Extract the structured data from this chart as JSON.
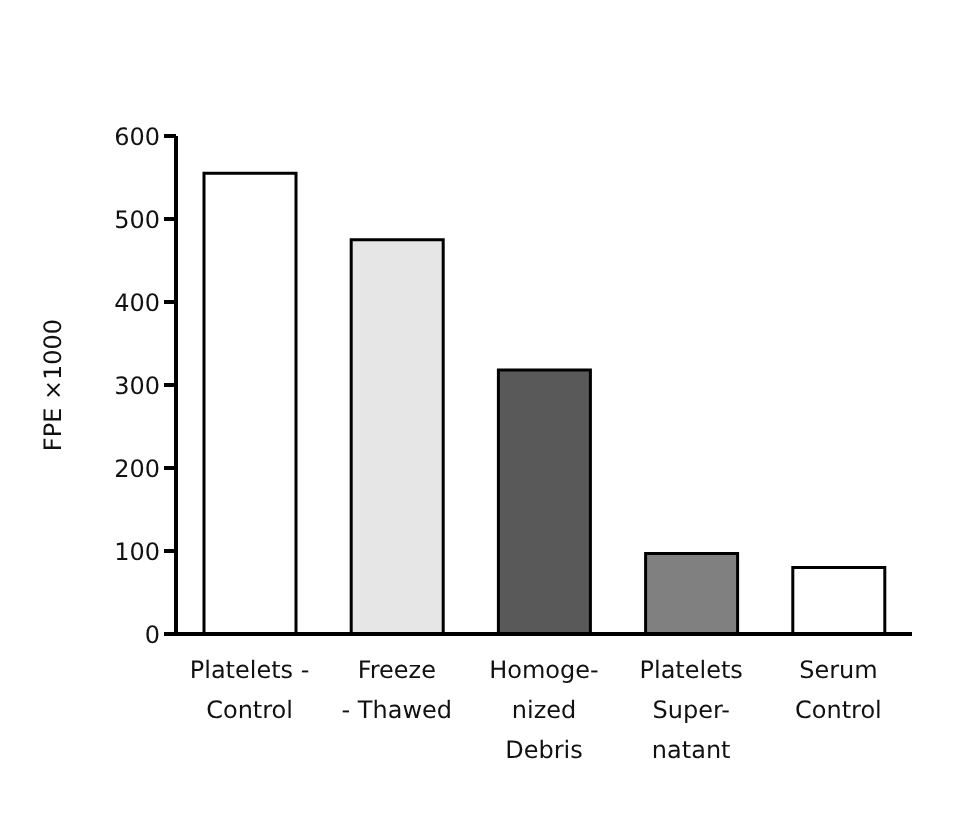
{
  "chart_data": {
    "type": "bar",
    "ylabel": "FPE ×1000",
    "categories": [
      "Platelets -\nControl",
      "Freeze\n- Thawed",
      "Homoge-\nnized\nDebris",
      "Platelets\nSuper-\nnatant",
      "Serum\nControl"
    ],
    "values": [
      555,
      475,
      318,
      97,
      80
    ],
    "colors": [
      "#ffffff",
      "#e6e6e6",
      "#595959",
      "#808080",
      "#ffffff"
    ],
    "ylim": [
      0,
      600
    ],
    "yticks": [
      0,
      100,
      200,
      300,
      400,
      500,
      600
    ],
    "grid": false
  }
}
